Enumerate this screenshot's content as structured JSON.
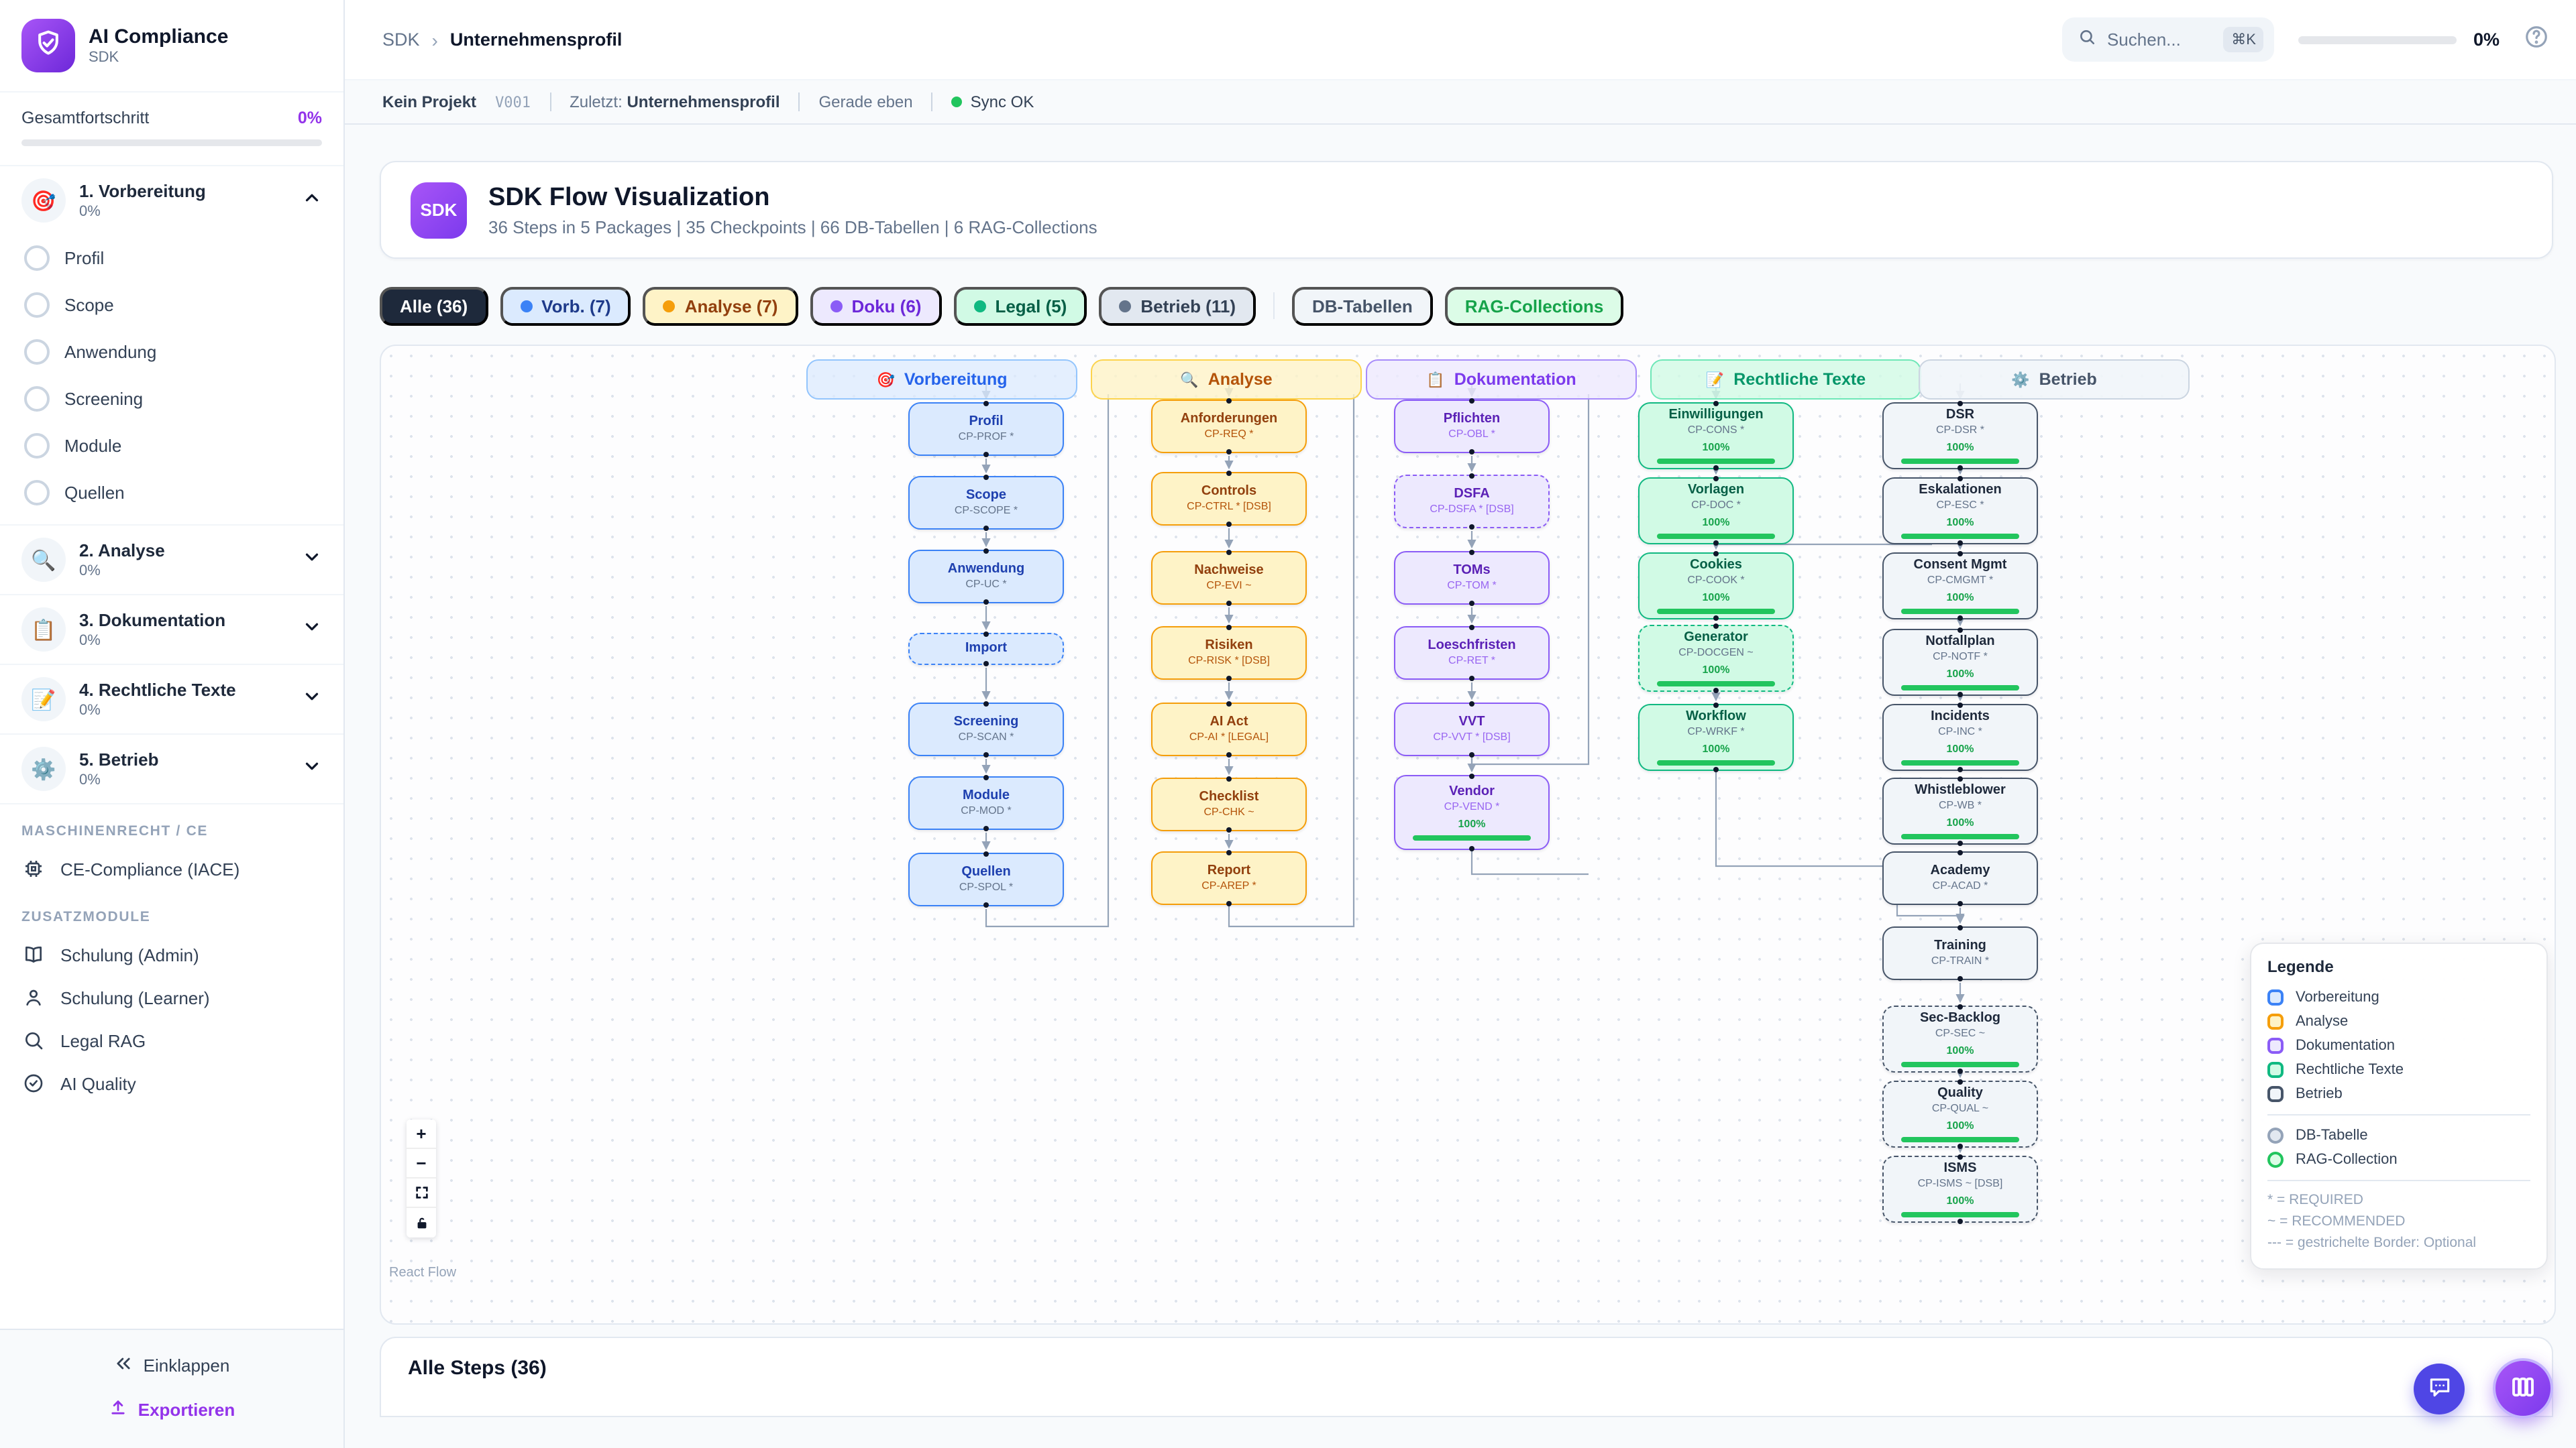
{
  "app": {
    "name": "AI Compliance",
    "sub": "SDK"
  },
  "sidebar": {
    "progress": {
      "label": "Gesamtfortschritt",
      "value": "0%"
    },
    "phases": [
      {
        "title": "1. Vorbereitung",
        "pct": "0%",
        "icon": "🎯",
        "expanded": true,
        "items": [
          "Profil",
          "Scope",
          "Anwendung",
          "Screening",
          "Module",
          "Quellen"
        ]
      },
      {
        "title": "2. Analyse",
        "pct": "0%",
        "icon": "🔍",
        "expanded": false,
        "items": []
      },
      {
        "title": "3. Dokumentation",
        "pct": "0%",
        "icon": "📋",
        "expanded": false,
        "items": []
      },
      {
        "title": "4. Rechtliche Texte",
        "pct": "0%",
        "icon": "📝",
        "expanded": false,
        "items": []
      },
      {
        "title": "5. Betrieb",
        "pct": "0%",
        "icon": "⚙️",
        "expanded": false,
        "items": []
      }
    ],
    "groups": [
      {
        "label": "MASCHINENRECHT / CE",
        "items": [
          {
            "label": "CE-Compliance (IACE)",
            "icon": "cpu"
          }
        ]
      },
      {
        "label": "ZUSATZMODULE",
        "items": [
          {
            "label": "Schulung (Admin)",
            "icon": "book"
          },
          {
            "label": "Schulung (Learner)",
            "icon": "user"
          },
          {
            "label": "Legal RAG",
            "icon": "search"
          },
          {
            "label": "AI Quality",
            "icon": "check"
          }
        ]
      }
    ],
    "footer": {
      "collapse": "Einklappen",
      "export": "Exportieren"
    }
  },
  "header": {
    "breadcrumb": [
      "SDK",
      "Unternehmensprofil"
    ],
    "search": {
      "placeholder": "Suchen...",
      "shortcut": "⌘K"
    },
    "progress": "0%"
  },
  "statusbar": {
    "project": "Kein Projekt",
    "version": "V001",
    "last_label": "Zuletzt:",
    "last_value": "Unternehmensprofil",
    "time": "Gerade eben",
    "sync": "Sync OK"
  },
  "hero": {
    "badge": "SDK",
    "title": "SDK Flow Visualization",
    "subtitle": "36 Steps in 5 Packages | 35 Checkpoints | 66 DB-Tabellen | 6 RAG-Collections"
  },
  "filters": [
    {
      "label": "Alle (36)",
      "variant": "all",
      "dot": false
    },
    {
      "label": "Vorb. (7)",
      "variant": "blue",
      "dot": true
    },
    {
      "label": "Analyse (7)",
      "variant": "yellow",
      "dot": true
    },
    {
      "label": "Doku (6)",
      "variant": "purple",
      "dot": true
    },
    {
      "label": "Legal (5)",
      "variant": "green",
      "dot": true
    },
    {
      "label": "Betrieb (11)",
      "variant": "gray",
      "dot": true
    }
  ],
  "extra_filters": [
    {
      "label": "DB-Tabellen",
      "variant": "db"
    },
    {
      "label": "RAG-Collections",
      "variant": "rag"
    }
  ],
  "flow": {
    "columns": [
      {
        "title": "Vorbereitung",
        "icon": "🎯",
        "color": "blue",
        "nodes": [
          {
            "t": "Profil",
            "s": "CP-PROF *"
          },
          {
            "t": "Scope",
            "s": "CP-SCOPE *"
          },
          {
            "t": "Anwendung",
            "s": "CP-UC *"
          },
          {
            "t": "Import",
            "s": "",
            "dashed": true
          },
          {
            "t": "Screening",
            "s": "CP-SCAN *"
          },
          {
            "t": "Module",
            "s": "CP-MOD *"
          },
          {
            "t": "Quellen",
            "s": "CP-SPOL *"
          }
        ]
      },
      {
        "title": "Analyse",
        "icon": "🔍",
        "color": "yellow",
        "nodes": [
          {
            "t": "Anforderungen",
            "s": "CP-REQ *"
          },
          {
            "t": "Controls",
            "s": "CP-CTRL * [DSB]"
          },
          {
            "t": "Nachweise",
            "s": "CP-EVI ~"
          },
          {
            "t": "Risiken",
            "s": "CP-RISK * [DSB]"
          },
          {
            "t": "AI Act",
            "s": "CP-AI * [LEGAL]"
          },
          {
            "t": "Checklist",
            "s": "CP-CHK ~"
          },
          {
            "t": "Report",
            "s": "CP-AREP *"
          }
        ]
      },
      {
        "title": "Dokumentation",
        "icon": "📋",
        "color": "purple",
        "nodes": [
          {
            "t": "Pflichten",
            "s": "CP-OBL *"
          },
          {
            "t": "DSFA",
            "s": "CP-DSFA * [DSB]",
            "dashed": true
          },
          {
            "t": "TOMs",
            "s": "CP-TOM *"
          },
          {
            "t": "Loeschfristen",
            "s": "CP-RET *"
          },
          {
            "t": "VVT",
            "s": "CP-VVT * [DSB]"
          },
          {
            "t": "Vendor",
            "s": "CP-VEND *",
            "pct": "100%"
          }
        ]
      },
      {
        "title": "Rechtliche Texte",
        "icon": "📝",
        "color": "green",
        "nodes": [
          {
            "t": "Einwilligungen",
            "s": "CP-CONS *",
            "pct": "100%"
          },
          {
            "t": "Vorlagen",
            "s": "CP-DOC *",
            "pct": "100%"
          },
          {
            "t": "Cookies",
            "s": "CP-COOK *",
            "pct": "100%"
          },
          {
            "t": "Generator",
            "s": "CP-DOCGEN ~",
            "pct": "100%",
            "dashed": true
          },
          {
            "t": "Workflow",
            "s": "CP-WRKF *",
            "pct": "100%"
          }
        ]
      },
      {
        "title": "Betrieb",
        "icon": "⚙️",
        "color": "gray",
        "nodes": [
          {
            "t": "DSR",
            "s": "CP-DSR *",
            "pct": "100%"
          },
          {
            "t": "Eskalationen",
            "s": "CP-ESC *",
            "pct": "100%"
          },
          {
            "t": "Consent Mgmt",
            "s": "CP-CMGMT *",
            "pct": "100%"
          },
          {
            "t": "Notfallplan",
            "s": "CP-NOTF *",
            "pct": "100%"
          },
          {
            "t": "Incidents",
            "s": "CP-INC *",
            "pct": "100%"
          },
          {
            "t": "Whistleblower",
            "s": "CP-WB *",
            "pct": "100%"
          },
          {
            "t": "Academy",
            "s": "CP-ACAD *"
          },
          {
            "t": "Training",
            "s": "CP-TRAIN *"
          },
          {
            "t": "Sec-Backlog",
            "s": "CP-SEC ~",
            "pct": "100%",
            "dashed": true
          },
          {
            "t": "Quality",
            "s": "CP-QUAL ~",
            "pct": "100%",
            "dashed": true
          },
          {
            "t": "ISMS",
            "s": "CP-ISMS ~ [DSB]",
            "pct": "100%",
            "dashed": true
          }
        ]
      }
    ],
    "legend": {
      "title": "Legende",
      "phases": [
        {
          "label": "Vorbereitung",
          "color": "blue"
        },
        {
          "label": "Analyse",
          "color": "yellow"
        },
        {
          "label": "Dokumentation",
          "color": "purple"
        },
        {
          "label": "Rechtliche Texte",
          "color": "green"
        },
        {
          "label": "Betrieb",
          "color": "gray"
        }
      ],
      "shapes": [
        {
          "label": "DB-Tabelle",
          "color": "db"
        },
        {
          "label": "RAG-Collection",
          "color": "rag"
        }
      ],
      "notes": [
        "* = REQUIRED",
        "~ = RECOMMENDED",
        "--- = gestrichelte Border: Optional"
      ]
    },
    "controls": [
      "zoom-in",
      "zoom-out",
      "fit-view",
      "lock"
    ],
    "attribution": "React Flow"
  },
  "steps": {
    "title": "Alle Steps (36)"
  },
  "colors": {
    "accent": "#7c3aed",
    "progress": "#9333ea",
    "sync_ok": "#22c55e",
    "bar_fill": "#22c55e",
    "pct_text": "#16a34a",
    "phase_blue": "#3b82f6",
    "phase_yellow": "#f59e0b",
    "phase_purple": "#8b5cf6",
    "phase_green": "#10b981",
    "phase_gray": "#475569"
  }
}
